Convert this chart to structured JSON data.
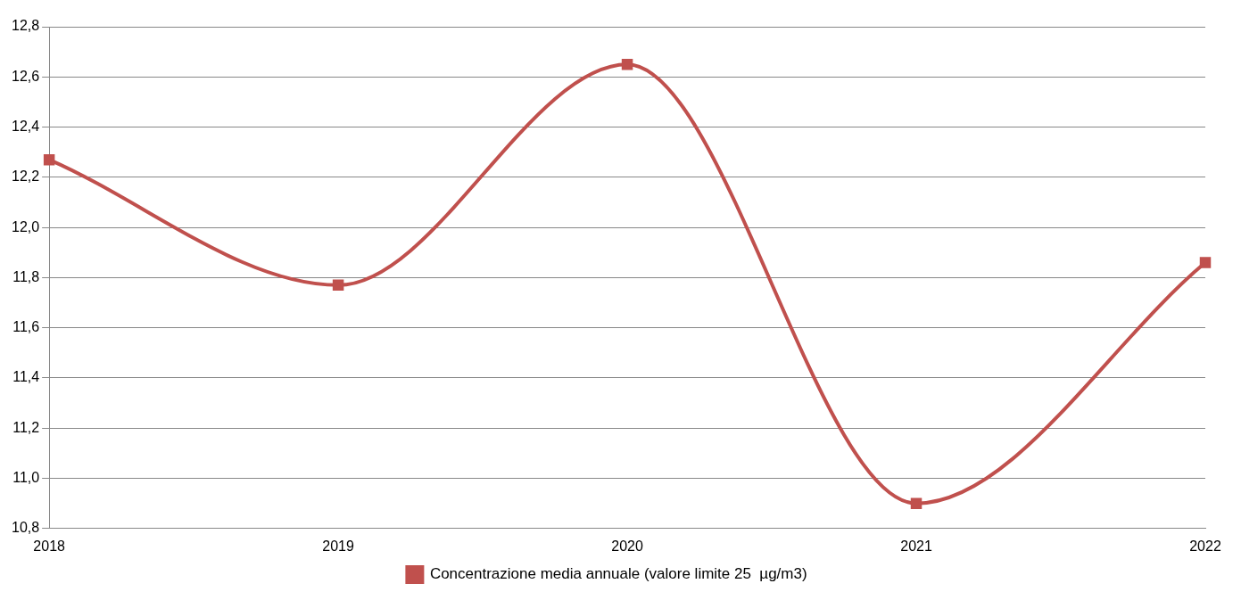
{
  "chart_data": {
    "type": "line",
    "categories": [
      "2018",
      "2019",
      "2020",
      "2021",
      "2022"
    ],
    "series": [
      {
        "name": "Concentrazione media annuale (valore limite 25  µg/m3)",
        "color": "#c0504d",
        "values": [
          12.27,
          11.77,
          12.65,
          10.9,
          11.86
        ]
      }
    ],
    "ylim": [
      10.8,
      12.8
    ],
    "yticks": [
      {
        "value": 10.8,
        "label": "10,8"
      },
      {
        "value": 11.0,
        "label": "11,0"
      },
      {
        "value": 11.2,
        "label": "11,2"
      },
      {
        "value": 11.4,
        "label": "11,4"
      },
      {
        "value": 11.6,
        "label": "11,6"
      },
      {
        "value": 11.8,
        "label": "11,8"
      },
      {
        "value": 12.0,
        "label": "12,0"
      },
      {
        "value": 12.2,
        "label": "12,2"
      },
      {
        "value": 12.4,
        "label": "12,4"
      },
      {
        "value": 12.6,
        "label": "12,6"
      },
      {
        "value": 12.8,
        "label": "12,8"
      }
    ],
    "grid": "y",
    "legend": "bottom",
    "marker": "square",
    "line_style": "solid"
  }
}
